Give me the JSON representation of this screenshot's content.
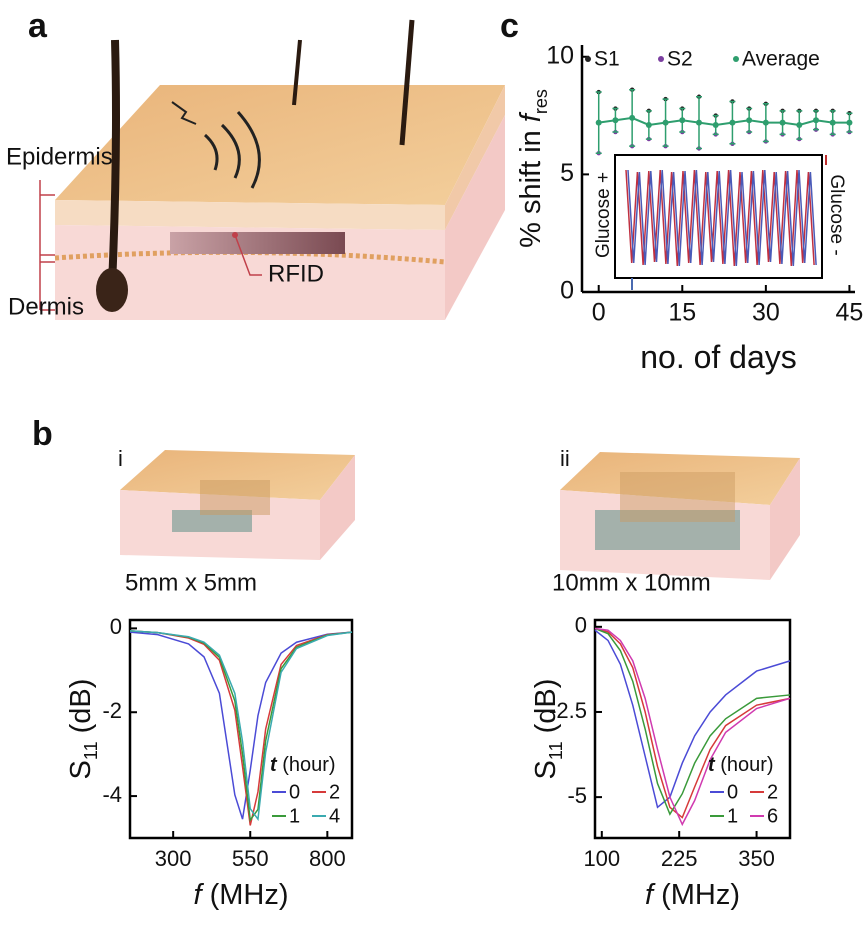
{
  "figure": {
    "panel_a": "a",
    "panel_b": "b",
    "panel_c": "c",
    "sub_i": "i",
    "sub_ii": "ii",
    "epidermis": "Epidermis",
    "dermis": "Dermis",
    "rfid": "RFID",
    "size_i": "5mm x 5mm",
    "size_ii": "10mm x 10mm",
    "inset_left": "Glucose +",
    "inset_right": "Glucose -"
  },
  "chart_data": [
    {
      "type": "errorbar",
      "ylabel": "% shift in ",
      "ylabel_var": "f",
      "ylabel_sub": "res",
      "xlabel": "no. of days",
      "x": [
        0,
        3,
        6,
        9,
        12,
        15,
        18,
        21,
        24,
        27,
        30,
        33,
        36,
        39,
        42,
        45
      ],
      "series": [
        {
          "name": "S1",
          "color": "#222222",
          "values": [
            8.5,
            7.8,
            8.6,
            7.7,
            8.2,
            7.8,
            8.3,
            7.5,
            8.1,
            7.8,
            8.0,
            7.7,
            7.7,
            7.7,
            7.7,
            7.6
          ]
        },
        {
          "name": "S2",
          "color": "#7b3fa0",
          "values": [
            5.9,
            6.8,
            6.2,
            6.5,
            6.2,
            6.8,
            6.1,
            6.7,
            6.3,
            6.8,
            6.4,
            6.7,
            6.5,
            6.9,
            6.7,
            6.8
          ]
        },
        {
          "name": "Average",
          "color": "#2e9e6e",
          "values": [
            7.2,
            7.3,
            7.4,
            7.1,
            7.2,
            7.3,
            7.2,
            7.1,
            7.2,
            7.3,
            7.2,
            7.2,
            7.1,
            7.3,
            7.2,
            7.2
          ],
          "errors": [
            1.3,
            0.5,
            1.2,
            0.6,
            1.0,
            0.5,
            1.1,
            0.4,
            0.9,
            0.5,
            0.8,
            0.5,
            0.6,
            0.4,
            0.5,
            0.4
          ]
        }
      ],
      "xlim": [
        -3,
        46
      ],
      "xticks": [
        0,
        15,
        30,
        45
      ],
      "ylim": [
        0,
        10.5
      ],
      "yticks": [
        0,
        5,
        10
      ],
      "box": false,
      "legend": "top"
    },
    {
      "type": "line",
      "ylabel": "S",
      "ylabel_sub": "11",
      "ylabel_unit": " (dB)",
      "xlabel_var": "f",
      "xlabel": " (MHz)",
      "legend_title_var": "t",
      "legend_title": " (hour)",
      "x": [
        160,
        250,
        350,
        400,
        450,
        500,
        525,
        550,
        575,
        600,
        650,
        700,
        800,
        880
      ],
      "series": [
        {
          "name": "0",
          "color": "#4b4bd6",
          "values": [
            -0.09,
            -0.15,
            -0.37,
            -0.68,
            -1.55,
            -3.97,
            -4.55,
            -3.38,
            -2.08,
            -1.29,
            -0.59,
            -0.33,
            -0.14,
            -0.09
          ]
        },
        {
          "name": "2",
          "color": "#d63a3a",
          "values": [
            -0.06,
            -0.1,
            -0.23,
            -0.38,
            -0.76,
            -1.95,
            -3.3,
            -4.7,
            -3.9,
            -2.4,
            -0.86,
            -0.41,
            -0.15,
            -0.09
          ]
        },
        {
          "name": "1",
          "color": "#3a9a3a",
          "values": [
            -0.06,
            -0.1,
            -0.21,
            -0.35,
            -0.69,
            -1.73,
            -3.0,
            -4.57,
            -4.32,
            -2.68,
            -0.96,
            -0.45,
            -0.16,
            -0.09
          ]
        },
        {
          "name": "4",
          "color": "#3aaab0",
          "values": [
            -0.06,
            -0.1,
            -0.2,
            -0.33,
            -0.64,
            -1.55,
            -2.7,
            -4.3,
            -4.55,
            -2.95,
            -1.05,
            -0.48,
            -0.17,
            -0.09
          ]
        }
      ],
      "xlim": [
        160,
        880
      ],
      "xticks": [
        300,
        550,
        800
      ],
      "ylim": [
        -5,
        0.2
      ],
      "yticks": [
        0,
        -2,
        -4
      ],
      "box": true,
      "legend": "lower right"
    },
    {
      "type": "line",
      "ylabel": "S",
      "ylabel_sub": "11",
      "ylabel_unit": " (dB)",
      "xlabel_var": "f",
      "xlabel": " (MHz)",
      "legend_title_var": "t",
      "legend_title": " (hour)",
      "x": [
        89,
        110,
        130,
        150,
        170,
        190,
        210,
        230,
        250,
        275,
        300,
        350,
        404
      ],
      "series": [
        {
          "name": "0",
          "color": "#4b4bd6",
          "values": [
            -0.1,
            -0.4,
            -1.1,
            -2.3,
            -3.8,
            -5.3,
            -5.0,
            -4.0,
            -3.2,
            -2.5,
            -2.0,
            -1.3,
            -1.0
          ]
        },
        {
          "name": "2",
          "color": "#d63a3a",
          "values": [
            -0.05,
            -0.15,
            -0.5,
            -1.2,
            -2.5,
            -4.1,
            -5.3,
            -5.6,
            -4.7,
            -3.6,
            -2.9,
            -2.3,
            -2.1
          ]
        },
        {
          "name": "1",
          "color": "#3a9a3a",
          "values": [
            -0.05,
            -0.2,
            -0.7,
            -1.6,
            -3.0,
            -4.6,
            -5.5,
            -4.9,
            -4.0,
            -3.2,
            -2.7,
            -2.1,
            -2.0
          ]
        },
        {
          "name": "6",
          "color": "#d03ab0",
          "values": [
            -0.05,
            -0.1,
            -0.4,
            -1.0,
            -2.1,
            -3.6,
            -5.0,
            -5.8,
            -5.1,
            -3.9,
            -3.1,
            -2.4,
            -2.1
          ]
        }
      ],
      "xlim": [
        89,
        404
      ],
      "xticks": [
        100,
        225,
        350
      ],
      "ylim": [
        -6.2,
        0.2
      ],
      "yticks": [
        0,
        {
          "value": -2.5,
          "label": "-2.5"
        },
        -5
      ],
      "box": true,
      "legend": "lower right"
    }
  ]
}
